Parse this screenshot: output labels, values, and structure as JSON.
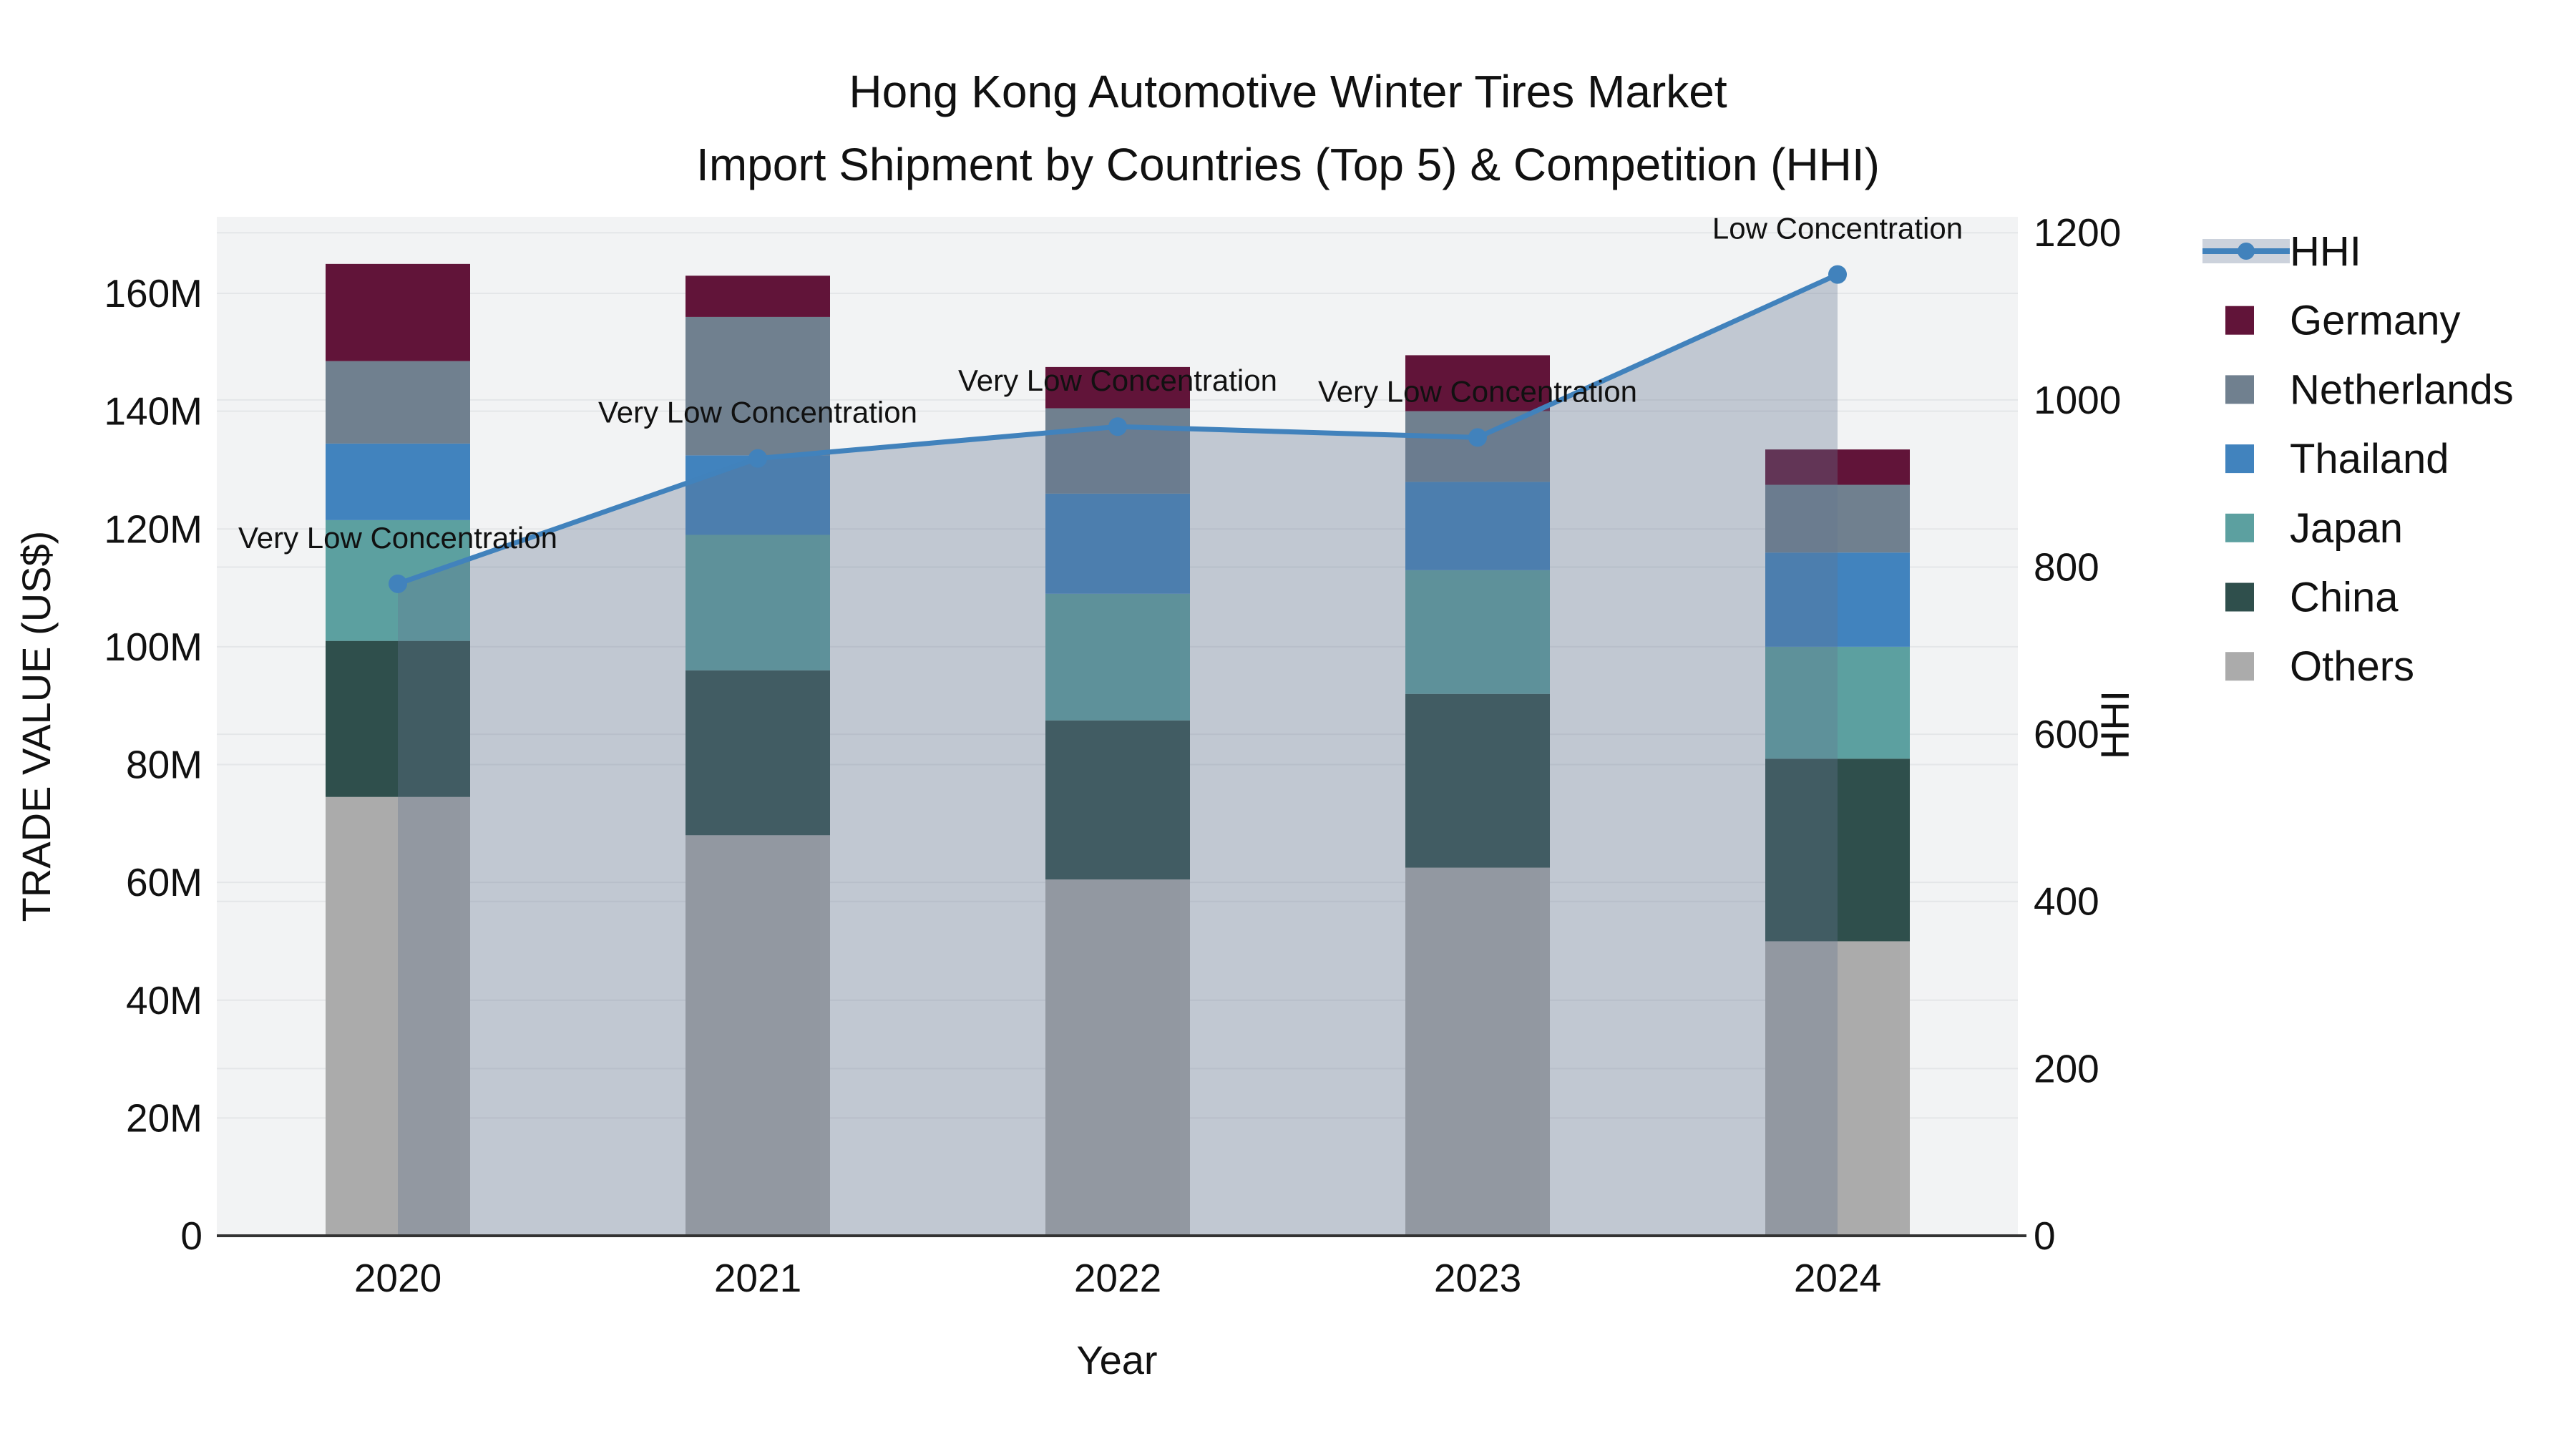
{
  "title": {
    "line1": "Hong Kong Automotive Winter Tires Market",
    "line2": "Import Shipment by Countries (Top 5) & Competition (HHI)"
  },
  "axes": {
    "x": {
      "label": "Year",
      "ticks": [
        "2020",
        "2021",
        "2022",
        "2023",
        "2024"
      ]
    },
    "y_left": {
      "label": "TRADE VALUE (US$)",
      "ticks": [
        "0",
        "20M",
        "40M",
        "60M",
        "80M",
        "100M",
        "120M",
        "140M",
        "160M"
      ],
      "range_millions": [
        0,
        173
      ]
    },
    "y_right": {
      "label": "HHI",
      "ticks": [
        "0",
        "200",
        "400",
        "600",
        "800",
        "1000",
        "1200"
      ],
      "range": [
        0,
        1219
      ]
    }
  },
  "legend": {
    "items": [
      {
        "label": "HHI",
        "type": "line",
        "color": "#4182BC",
        "band_color": "#CCD2DC"
      },
      {
        "label": "Germany",
        "type": "swatch",
        "color": "#611439"
      },
      {
        "label": "Netherlands",
        "type": "swatch",
        "color": "#70808F"
      },
      {
        "label": "Thailand",
        "type": "swatch",
        "color": "#4183BE"
      },
      {
        "label": "Japan",
        "type": "swatch",
        "color": "#5CA0A0"
      },
      {
        "label": "China",
        "type": "swatch",
        "color": "#2F4F4C"
      },
      {
        "label": "Others",
        "type": "swatch",
        "color": "#ABABAB"
      }
    ]
  },
  "chart_data": {
    "type": "combo-stacked-bar-line",
    "categories": [
      "2020",
      "2021",
      "2022",
      "2023",
      "2024"
    ],
    "bar_value_unit": "millions US$",
    "bar_series": [
      {
        "name": "Others",
        "color": "#ABABAB",
        "values": [
          74.5,
          68.0,
          60.5,
          62.5,
          50.0
        ]
      },
      {
        "name": "China",
        "color": "#2F4F4C",
        "values": [
          26.5,
          28.0,
          27.0,
          29.5,
          31.0
        ]
      },
      {
        "name": "Japan",
        "color": "#5CA0A0",
        "values": [
          20.5,
          23.0,
          21.5,
          21.0,
          19.0
        ]
      },
      {
        "name": "Thailand",
        "color": "#4183BE",
        "values": [
          13.0,
          13.5,
          17.0,
          15.0,
          16.0
        ]
      },
      {
        "name": "Netherlands",
        "color": "#70808F",
        "values": [
          14.0,
          23.5,
          14.5,
          12.0,
          11.5
        ]
      },
      {
        "name": "Germany",
        "color": "#611439",
        "values": [
          16.5,
          7.0,
          7.0,
          9.5,
          6.0
        ]
      }
    ],
    "bar_totals_millions": [
      165.0,
      163.0,
      147.5,
      149.5,
      133.5
    ],
    "line_series": {
      "name": "HHI",
      "color": "#4182BC",
      "area_fill": "rgba(100,118,145,0.34)",
      "values": [
        780,
        930,
        968,
        955,
        1150
      ]
    },
    "annotations": [
      {
        "category": "2020",
        "text": "Very Low Concentration"
      },
      {
        "category": "2021",
        "text": "Very Low Concentration"
      },
      {
        "category": "2022",
        "text": "Very Low Concentration"
      },
      {
        "category": "2023",
        "text": "Very Low Concentration"
      },
      {
        "category": "2024",
        "text": "Low Concentration"
      }
    ],
    "style": {
      "plot_bg": "#F2F3F4",
      "grid_color": "#E4E6E8",
      "axis_line_color": "#333333"
    }
  }
}
